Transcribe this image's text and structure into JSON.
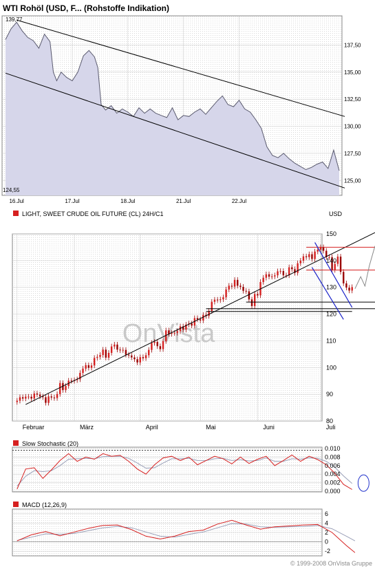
{
  "chart_data": [
    {
      "type": "line",
      "title": "WTI Rohöl (USD, F... (Rohstoffe Indikation)",
      "ylim": [
        124.0,
        140.0
      ],
      "y_ticks": [
        "137,50",
        "135,00",
        "132,50",
        "130,00",
        "127,50",
        "125,00"
      ],
      "y_tick_values": [
        137.5,
        135.0,
        132.5,
        130.0,
        127.5,
        125.0
      ],
      "x_ticks": [
        "16.Jul",
        "17.Jul",
        "18.Jul",
        "21.Jul",
        "22.Jul"
      ],
      "x_tick_positions": [
        1,
        6,
        11,
        16,
        21
      ],
      "x_range": [
        0,
        30
      ],
      "high_label": "139,77",
      "low_label": "124,55",
      "series": [
        {
          "x": [
            0,
            0.5,
            1,
            1.5,
            2,
            2.5,
            3,
            3.5,
            4,
            4.3,
            4.6,
            5,
            5.5,
            6,
            6.5,
            7,
            7.5,
            8,
            8.3,
            8.6,
            9,
            9.5,
            10,
            10.5,
            11,
            11.5,
            12,
            12.5,
            13,
            13.5,
            14,
            14.5,
            15,
            15.5,
            16,
            16.5,
            17,
            17.5,
            18,
            18.5,
            19,
            19.5,
            20,
            20.5,
            21,
            21.5,
            22,
            22.5,
            23,
            23.5,
            24,
            24.5,
            25,
            25.5,
            26,
            26.5,
            27,
            27.5,
            28,
            28.5,
            29,
            29.5,
            30
          ],
          "values": [
            138.0,
            139.0,
            139.6,
            138.8,
            138.2,
            137.9,
            137.2,
            138.5,
            137.8,
            135.0,
            134.2,
            135.0,
            134.5,
            134.2,
            135.0,
            136.5,
            137.0,
            136.4,
            135.4,
            132.0,
            131.5,
            131.9,
            131.2,
            131.6,
            131.3,
            130.9,
            131.7,
            131.2,
            131.6,
            131.2,
            131.0,
            130.8,
            131.7,
            130.6,
            131.0,
            130.9,
            131.3,
            131.6,
            131.1,
            131.7,
            132.3,
            132.8,
            132.0,
            131.8,
            132.4,
            131.6,
            131.3,
            130.6,
            129.8,
            128.1,
            127.3,
            127.1,
            127.5,
            127.0,
            126.6,
            126.3,
            126.0,
            126.2,
            126.5,
            126.7,
            126.1,
            127.8,
            125.9
          ]
        }
      ],
      "trendlines": [
        {
          "x": [
            1,
            30.5
          ],
          "values": [
            139.8,
            130.9
          ]
        },
        {
          "x": [
            0,
            30.5
          ],
          "values": [
            134.9,
            124.3
          ]
        }
      ]
    },
    {
      "type": "candlestick",
      "title": "LIGHT, SWEET CRUDE OIL FUTURE (CL) 24H/C1",
      "ylabel": "USD",
      "ylim": [
        80,
        150
      ],
      "y_ticks": [
        "150",
        "140",
        "130",
        "120",
        "110",
        "100",
        "90",
        "80"
      ],
      "y_tick_values": [
        150,
        140,
        130,
        120,
        110,
        100,
        90,
        80
      ],
      "x_ticks": [
        "Februar",
        "März",
        "April",
        "Mai",
        "Juni",
        "Juli"
      ],
      "x_tick_positions": [
        0,
        20,
        43,
        64,
        84,
        106
      ],
      "x_range": [
        -5,
        125
      ],
      "watermark": "OnVista",
      "close": [
        87.6,
        88.9,
        88.4,
        89.1,
        89.1,
        88.4,
        90.3,
        89.9,
        89.2,
        88.9,
        86.8,
        89.2,
        88.8,
        88.6,
        90.1,
        94.2,
        91.6,
        93.1,
        95.1,
        95.0,
        95.3,
        95.6,
        98.0,
        99.6,
        100.9,
        99.9,
        100.8,
        103.6,
        104.0,
        104.7,
        106.7,
        103.7,
        105.5,
        107.9,
        108.6,
        106.7,
        106.5,
        106.6,
        104.8,
        104.5,
        103.8,
        103.1,
        101.9,
        103.9,
        103.5,
        104.6,
        106.6,
        109.2,
        109.6,
        108.0,
        106.9,
        109.9,
        113.9,
        112.6,
        112.9,
        113.0,
        113.6,
        115.4,
        114.2,
        116.1,
        116.5,
        115.7,
        118.5,
        118.0,
        117.6,
        119.7,
        119.3,
        121.2,
        124.6,
        125.4,
        125.2,
        125.5,
        126.3,
        129.2,
        130.6,
        130.3,
        132.8,
        130.6,
        130.2,
        128.7,
        128.5,
        125.5,
        123.0,
        127.5,
        127.0,
        132.0,
        133.6,
        134.9,
        134.0,
        134.1,
        134.5,
        136.0,
        136.1,
        134.5,
        134.5,
        137.5,
        136.8,
        135.4,
        139.0,
        140.0,
        141.6,
        141.3,
        142.4,
        140.6,
        143.4,
        144.1,
        145.0,
        143.7,
        141.3,
        141.3,
        136.5,
        138.8,
        141.5,
        135.8,
        131.5,
        129.9,
        128.8,
        130.1
      ],
      "trendlines": [
        {
          "x": [
            3,
            125
          ],
          "values": [
            86.2,
            150.5
          ]
        },
        {
          "x": [
            66,
            117
          ],
          "values": [
            121.0,
            121.0
          ]
        },
        {
          "x": [
            66,
            125
          ],
          "values": [
            122.0,
            122.0
          ]
        },
        {
          "x": [
            80,
            125
          ],
          "values": [
            124.5,
            124.5
          ]
        }
      ],
      "channel": [
        {
          "x": [
            104,
            117
          ],
          "values": [
            146.8,
            122.5
          ]
        },
        {
          "x": [
            103,
            114
          ],
          "values": [
            137.5,
            118.0
          ]
        }
      ],
      "resistance_lines": [
        {
          "x": [
            101,
            125
          ],
          "values": [
            145.0,
            145.0
          ]
        },
        {
          "x": [
            101,
            125
          ],
          "values": [
            136.5,
            136.5
          ]
        }
      ],
      "projection": [
        {
          "x": [
            118,
            120,
            121.5,
            123,
            125
          ],
          "values": [
            129.5,
            134.0,
            130.5,
            138.0,
            145.5
          ]
        },
        {
          "x": [
            125,
            132
          ],
          "values": [
            145.5,
            110.0
          ]
        }
      ]
    },
    {
      "type": "line",
      "title": "Slow Stochastic (20)",
      "ylim": [
        0,
        0.01
      ],
      "y_ticks": [
        "0.010",
        "0.008",
        "0.006",
        "0.004",
        "0.002",
        "0.000"
      ],
      "y_tick_values": [
        0.01,
        0.008,
        0.006,
        0.004,
        0.002,
        0.0
      ],
      "x_range": [
        -5,
        125
      ],
      "series": [
        {
          "x": [
            0,
            3,
            6,
            9,
            12,
            15,
            18,
            21,
            24,
            27,
            30,
            33,
            36,
            39,
            42,
            45,
            48,
            51,
            54,
            57,
            60,
            63,
            66,
            69,
            72,
            75,
            78,
            81,
            84,
            87,
            90,
            93,
            96,
            99,
            102,
            105,
            108,
            111,
            114,
            117
          ],
          "values": [
            0.0005,
            0.0052,
            0.0055,
            0.003,
            0.005,
            0.0072,
            0.0088,
            0.007,
            0.008,
            0.0075,
            0.0088,
            0.0082,
            0.0084,
            0.007,
            0.0052,
            0.004,
            0.0062,
            0.0078,
            0.0082,
            0.0072,
            0.008,
            0.0062,
            0.0072,
            0.0082,
            0.0076,
            0.0064,
            0.008,
            0.0065,
            0.0075,
            0.0082,
            0.006,
            0.0072,
            0.0085,
            0.007,
            0.0082,
            0.0074,
            0.0062,
            0.0042,
            0.0016,
            0.0004
          ]
        },
        {
          "x": [
            0,
            3,
            6,
            9,
            12,
            15,
            18,
            21,
            24,
            27,
            30,
            33,
            36,
            39,
            42,
            45,
            48,
            51,
            54,
            57,
            60,
            63,
            66,
            69,
            72,
            75,
            78,
            81,
            84,
            87,
            90,
            93,
            96,
            99,
            102,
            105,
            108,
            111,
            114,
            117
          ],
          "values": [
            0.0012,
            0.0035,
            0.0048,
            0.0046,
            0.0048,
            0.006,
            0.0075,
            0.0076,
            0.0077,
            0.0076,
            0.0081,
            0.0082,
            0.0082,
            0.0077,
            0.0066,
            0.0054,
            0.0055,
            0.0066,
            0.0076,
            0.0076,
            0.0077,
            0.0072,
            0.0072,
            0.0076,
            0.0077,
            0.0072,
            0.0074,
            0.0071,
            0.0072,
            0.0078,
            0.007,
            0.007,
            0.0076,
            0.0075,
            0.0078,
            0.0077,
            0.007,
            0.0056,
            0.0036,
            0.0018
          ]
        }
      ],
      "reference_line": 0.0096,
      "highlight_circle": {
        "x": 121,
        "y": 0.0019
      }
    },
    {
      "type": "line",
      "title": "MACD (12,26,9)",
      "ylim": [
        -3,
        7
      ],
      "y_ticks": [
        "6",
        "4",
        "2",
        "0",
        "-2"
      ],
      "y_tick_values": [
        6,
        4,
        2,
        0,
        -2
      ],
      "x_range": [
        -5,
        125
      ],
      "series": [
        {
          "x": [
            0,
            5,
            10,
            15,
            20,
            25,
            30,
            35,
            40,
            45,
            50,
            55,
            60,
            65,
            70,
            75,
            80,
            85,
            90,
            95,
            100,
            105,
            110,
            115,
            118
          ],
          "values": [
            0.2,
            1.5,
            2.2,
            1.3,
            2.1,
            2.9,
            3.5,
            3.6,
            2.6,
            1.2,
            0.6,
            1.2,
            2.2,
            2.5,
            3.8,
            4.6,
            3.6,
            2.7,
            3.2,
            3.4,
            3.6,
            3.7,
            2.0,
            -0.8,
            -2.3
          ]
        },
        {
          "x": [
            0,
            5,
            10,
            15,
            20,
            25,
            30,
            35,
            40,
            45,
            50,
            55,
            60,
            65,
            70,
            75,
            80,
            85,
            90,
            95,
            100,
            105,
            110,
            115,
            118
          ],
          "values": [
            0.3,
            1.0,
            1.7,
            1.6,
            1.8,
            2.4,
            3.0,
            3.3,
            3.0,
            2.1,
            1.2,
            1.0,
            1.6,
            2.1,
            3.0,
            3.9,
            3.8,
            3.2,
            3.1,
            3.2,
            3.3,
            3.5,
            2.8,
            1.2,
            0.2
          ]
        }
      ]
    }
  ],
  "footer": "© 1999-2008 OnVista Gruppe",
  "colors": {
    "legend_swatch": "#d62020",
    "price_line": "#5a5a6e",
    "price_fill": "#d6d6ea",
    "candle_up": "#d62020",
    "candle_down": "#9a0000",
    "stoch_main": "#d62020",
    "stoch_signal": "#9aa0b8",
    "circle": "#2233cc",
    "channel": "#1a22c8",
    "hline": "#d62020"
  }
}
